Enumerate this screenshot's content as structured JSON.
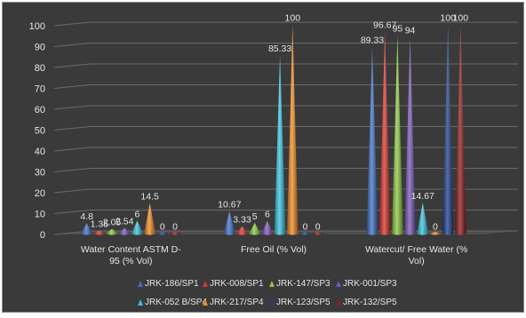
{
  "chart_data": {
    "type": "bar",
    "style": "3d-cone",
    "categories": [
      "Water Content ASTM D-95 (% Vol)",
      "Free Oil (% Vol)",
      "Watercut/ Free Water (% Vol)"
    ],
    "category_lines": [
      [
        "Water Content ASTM D-",
        "95 (% Vol)"
      ],
      [
        "Free Oil (% Vol)"
      ],
      [
        "Watercut/ Free Water (%",
        "Vol)"
      ]
    ],
    "series": [
      {
        "name": "JRK-186/SP1",
        "color": "#3f6fc5",
        "values": [
          4.8,
          10.67,
          89.33
        ],
        "labels": [
          "4.8",
          "10.67",
          "89.33"
        ]
      },
      {
        "name": "JRK-008/SP1",
        "color": "#d9342b",
        "values": [
          1.35,
          3.33,
          96.67
        ],
        "labels": [
          "1.35",
          "3.33",
          "96.67"
        ]
      },
      {
        "name": "JRK-147/SP3",
        "color": "#8cc63f",
        "values": [
          2.05,
          5,
          95
        ],
        "labels": [
          "2.05",
          "5",
          "95"
        ]
      },
      {
        "name": "JRK-001/SP3",
        "color": "#7a57b8",
        "values": [
          2.54,
          6,
          94
        ],
        "labels": [
          "2.54",
          "6",
          "94"
        ]
      },
      {
        "name": "JRK-052 B/SP4",
        "color": "#38c2dd",
        "values": [
          6,
          85.33,
          14.67
        ],
        "labels": [
          "6",
          "85.33",
          "14.67"
        ]
      },
      {
        "name": "JRK-217/SP4",
        "color": "#ee8a22",
        "values": [
          14.5,
          100,
          0
        ],
        "labels": [
          "14.5",
          "100",
          "0"
        ]
      },
      {
        "name": "JRK-123/SP5",
        "color": "#1f3f8a",
        "values": [
          0,
          0,
          100
        ],
        "labels": [
          "0",
          "0",
          "100"
        ]
      },
      {
        "name": "JRK-132/SP5",
        "color": "#8e1c1c",
        "values": [
          0,
          0,
          100
        ],
        "labels": [
          "0",
          "0",
          "100"
        ]
      }
    ],
    "y_ticks": [
      "0",
      "10",
      "20",
      "30",
      "40",
      "50",
      "60",
      "70",
      "80",
      "90",
      "100"
    ],
    "ylim": [
      0,
      100
    ],
    "grid": true,
    "legend": "bottom",
    "title": "",
    "xlabel": "",
    "ylabel": ""
  }
}
